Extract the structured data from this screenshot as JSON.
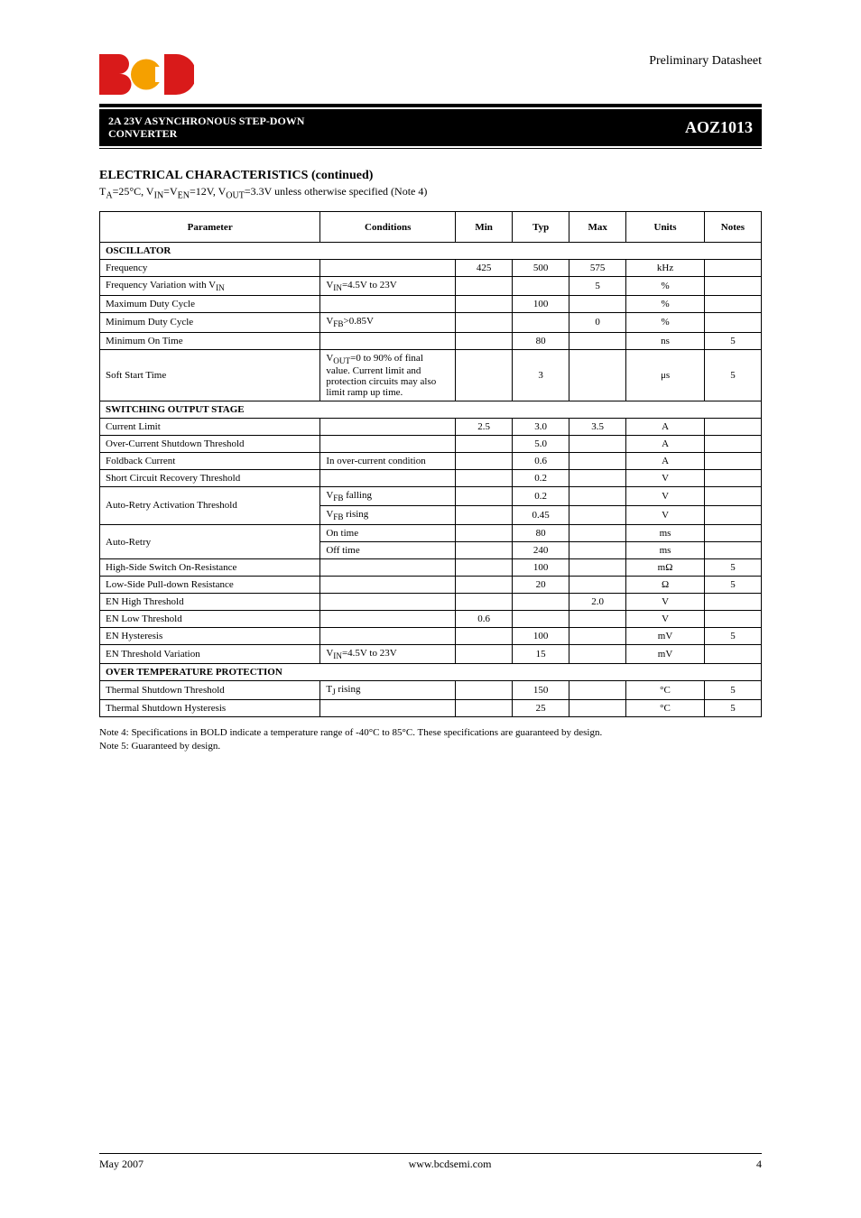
{
  "header": {
    "doc_type_line1": "Preliminary Datasheet",
    "title_line1": "2A 23V ASYNCHRONOUS STEP-DOWN",
    "title_line2": "CONVERTER",
    "part_no": "AOZ1013"
  },
  "section": {
    "title": "ELECTRICAL CHARACTERISTICS (continued)",
    "subtitle_prefix": "T",
    "subtitle_sub": "A",
    "subtitle_rest": "=25°C, V",
    "subtitle_sub2": "IN",
    "subtitle_rest2": "=V",
    "subtitle_sub3": "EN",
    "subtitle_rest3": "=12V, V",
    "subtitle_sub4": "OUT",
    "subtitle_rest4": "=3.3V unless otherwise specified (Note 4)"
  },
  "table": {
    "headers": [
      "Parameter",
      "Conditions",
      "Min",
      "Typ",
      "Max",
      "Units",
      "Notes"
    ],
    "col_widths": [
      "31%",
      "19%",
      "8%",
      "8%",
      "8%",
      "11%",
      "8%"
    ],
    "sections": [
      {
        "title": "OSCILLATOR",
        "rows": [
          {
            "param": "Frequency",
            "cond": "",
            "min": "425",
            "typ": "500",
            "max": "575",
            "unit": "kHz",
            "notes": ""
          },
          {
            "param_html": "Frequency Variation with V<sub>IN</sub>",
            "cond_html": "V<sub>IN</sub>=4.5V to 23V",
            "min": "",
            "typ": "",
            "max": "5",
            "unit": "%",
            "notes": ""
          },
          {
            "param": "Maximum Duty Cycle",
            "cond": "",
            "min": "",
            "typ": "100",
            "max": "",
            "unit": "%",
            "notes": ""
          },
          {
            "param": "Minimum Duty Cycle",
            "cond_html": "V<sub>FB</sub>>0.85V",
            "min": "",
            "typ": "",
            "max": "0",
            "unit": "%",
            "notes": ""
          },
          {
            "param": "Minimum On Time",
            "cond": "",
            "min": "",
            "typ": "80",
            "max": "",
            "unit": "ns",
            "notes": "5"
          },
          {
            "param": "Soft Start Time",
            "cond_html": "V<sub>OUT</sub>=0 to 90% of final value. Current limit and protection circuits may also limit ramp up time.",
            "min": "",
            "typ": "3",
            "max": "",
            "unit": "μs",
            "notes": "5"
          }
        ]
      },
      {
        "title": "SWITCHING OUTPUT STAGE",
        "rows": [
          {
            "param": "Current Limit",
            "cond": "",
            "min": "2.5",
            "typ": "3.0",
            "max": "3.5",
            "unit": "A",
            "notes": ""
          },
          {
            "param": "Over-Current Shutdown Threshold",
            "cond": "",
            "min": "",
            "typ": "5.0",
            "max": "",
            "unit": "A",
            "notes": ""
          },
          {
            "param": "Foldback Current",
            "cond": "In over-current condition",
            "min": "",
            "typ": "0.6",
            "max": "",
            "unit": "A",
            "notes": ""
          },
          {
            "param": "Short Circuit Recovery Threshold",
            "cond": "",
            "min": "",
            "typ": "0.2",
            "max": "",
            "unit": "V",
            "notes": ""
          },
          {
            "param": "Auto-Retry Activation Threshold",
            "rowspan": 2,
            "cond_html": "V<sub>FB</sub> falling",
            "min": "",
            "typ": "0.2",
            "max": "",
            "unit": "V",
            "notes": ""
          },
          {
            "param_skip": true,
            "cond_html": "V<sub>FB</sub> rising",
            "min": "",
            "typ": "0.45",
            "max": "",
            "unit": "V",
            "notes": ""
          },
          {
            "param": "Auto-Retry",
            "rowspan": 2,
            "cond": "On time",
            "min": "",
            "typ": "80",
            "max": "",
            "unit": "ms",
            "notes": ""
          },
          {
            "param_skip": true,
            "cond": "Off time",
            "min": "",
            "typ": "240",
            "max": "",
            "unit": "ms",
            "notes": ""
          },
          {
            "param": "High-Side Switch On-Resistance",
            "cond": "",
            "min": "",
            "typ": "100",
            "max": "",
            "unit_html": "mΩ",
            "notes": "5"
          },
          {
            "param": "Low-Side Pull-down Resistance",
            "cond": "",
            "min": "",
            "typ": "20",
            "max": "",
            "unit_html": "Ω",
            "notes": "5"
          },
          {
            "param": "EN High Threshold",
            "cond": "",
            "min": "",
            "typ": "",
            "max": "2.0",
            "unit": "V",
            "notes": ""
          },
          {
            "param": "EN Low Threshold",
            "cond": "",
            "min": "0.6",
            "typ": "",
            "max": "",
            "unit": "V",
            "notes": ""
          },
          {
            "param": "EN Hysteresis",
            "cond": "",
            "min": "",
            "typ": "100",
            "max": "",
            "unit": "mV",
            "notes": "5"
          },
          {
            "param": "EN Threshold Variation",
            "cond_html": "V<sub>IN</sub>=4.5V to 23V",
            "min": "",
            "typ": "15",
            "max": "",
            "unit": "mV",
            "notes": ""
          }
        ]
      },
      {
        "title": "OVER TEMPERATURE PROTECTION",
        "rows": [
          {
            "param": "Thermal Shutdown Threshold",
            "cond_html": "T<sub>J</sub> rising",
            "min": "",
            "typ": "150",
            "max": "",
            "unit": "°C",
            "notes": "5"
          },
          {
            "param": "Thermal Shutdown Hysteresis",
            "cond": "",
            "min": "",
            "typ": "25",
            "max": "",
            "unit": "°C",
            "notes": "5"
          }
        ]
      }
    ]
  },
  "footnotes": {
    "n4": "Note 4: Specifications in BOLD indicate a temperature range of -40°C to 85°C. These specifications are guaranteed by design.",
    "n5": "Note 5: Guaranteed by design."
  },
  "footer": {
    "date": "May 2007",
    "site": "www.bcdsemi.com",
    "page": "4"
  },
  "logo_colors": {
    "red": "#d91a1a",
    "orange": "#f5a000"
  }
}
